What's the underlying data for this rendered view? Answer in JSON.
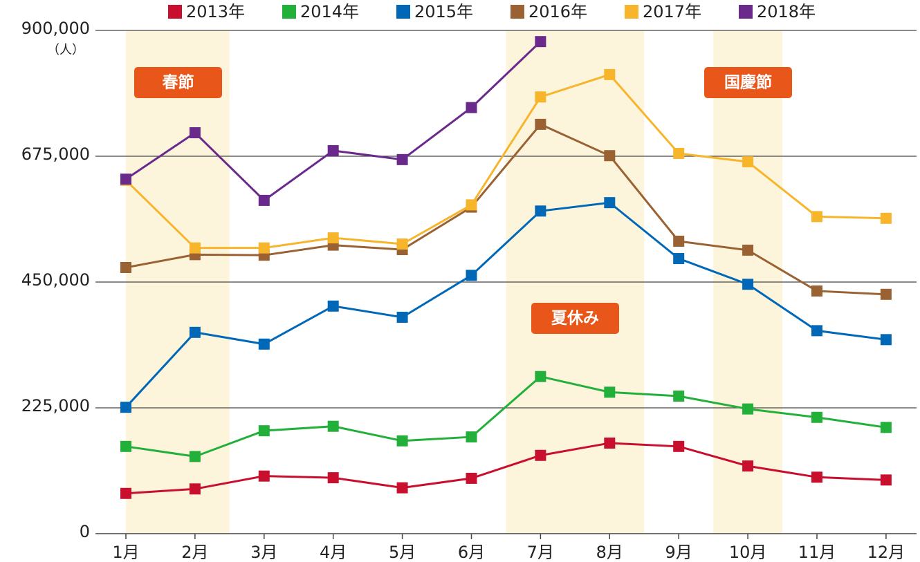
{
  "chart_data": {
    "type": "line",
    "y_axis_label": "（人）",
    "categories": [
      "1月",
      "2月",
      "3月",
      "4月",
      "5月",
      "6月",
      "7月",
      "8月",
      "9月",
      "10月",
      "11月",
      "12月"
    ],
    "series": [
      {
        "name": "2013年",
        "color": "#c8102e",
        "values": [
          72000,
          80000,
          103000,
          100000,
          82000,
          99000,
          140000,
          162000,
          156000,
          121000,
          101000,
          96000
        ]
      },
      {
        "name": "2014年",
        "color": "#22b03a",
        "values": [
          156000,
          138000,
          184000,
          192000,
          166000,
          173000,
          281000,
          253000,
          246000,
          223000,
          208000,
          190000
        ]
      },
      {
        "name": "2015年",
        "color": "#0068b7",
        "values": [
          226000,
          360000,
          339000,
          407000,
          387000,
          462000,
          577000,
          592000,
          492000,
          446000,
          363000,
          347000
        ]
      },
      {
        "name": "2016年",
        "color": "#9a6233",
        "values": [
          476000,
          499000,
          498000,
          516000,
          508000,
          584000,
          732000,
          676000,
          523000,
          507000,
          434000,
          428000
        ]
      },
      {
        "name": "2017年",
        "color": "#f7b52c",
        "values": [
          632000,
          511000,
          511000,
          529000,
          518000,
          588000,
          781000,
          821000,
          680000,
          665000,
          567000,
          564000
        ]
      },
      {
        "name": "2018年",
        "color": "#6a2a8c",
        "values": [
          634000,
          717000,
          596000,
          685000,
          669000,
          762000,
          880000,
          null,
          null,
          null,
          null,
          null
        ]
      }
    ],
    "ylim": [
      0,
      900000
    ],
    "yticks": [
      0,
      {
        "value": 225000,
        "label": "225,000"
      },
      {
        "value": 450000,
        "label": "450,000"
      },
      {
        "value": 675000,
        "label": "675,000"
      },
      {
        "value": 900000,
        "label": "900,000"
      }
    ],
    "grid": true,
    "annotations": [
      {
        "text": "春節"
      },
      {
        "text": "夏休み"
      },
      {
        "text": "国慶節"
      }
    ]
  }
}
